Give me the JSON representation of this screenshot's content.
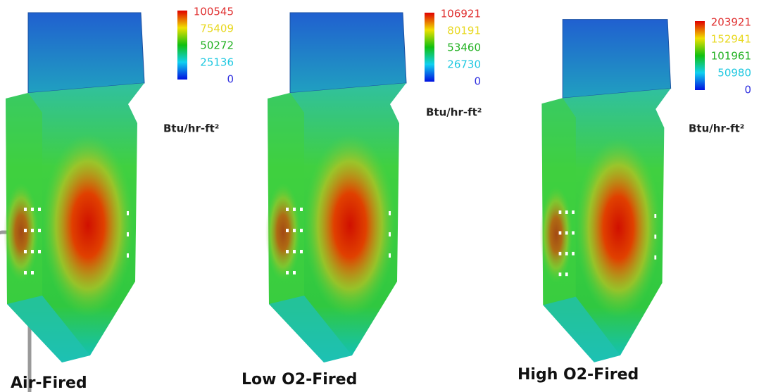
{
  "panels": [
    {
      "legend": [
        100545,
        75409,
        50272,
        25136,
        0
      ],
      "unit": "Btu/hr-ft²",
      "caption": "Air-Fired"
    },
    {
      "legend": [
        106921,
        80191,
        53460,
        26730,
        0
      ],
      "unit": "Btu/hr-ft²",
      "caption": "Low O2-Fired"
    },
    {
      "legend": [
        203921,
        152941,
        101961,
        50980,
        0
      ],
      "unit": "Btu/hr-ft²",
      "caption": "High O2-Fired"
    }
  ]
}
